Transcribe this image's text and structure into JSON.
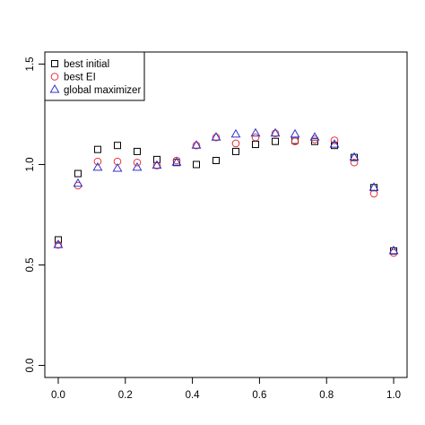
{
  "chart_data": {
    "type": "scatter",
    "title": "",
    "xlabel": "",
    "ylabel": "",
    "xlim": [
      -0.04,
      1.04
    ],
    "ylim": [
      -0.06,
      1.56
    ],
    "x_ticks": [
      0.0,
      0.2,
      0.4,
      0.6,
      0.8,
      1.0
    ],
    "x_tick_labels": [
      "0.0",
      "0.2",
      "0.4",
      "0.6",
      "0.8",
      "1.0"
    ],
    "y_ticks": [
      0.0,
      0.5,
      1.0,
      1.5
    ],
    "y_tick_labels": [
      "0.0",
      "0.5",
      "1.0",
      "1.5"
    ],
    "grid": false,
    "legend": {
      "position": "top-left",
      "entries": [
        {
          "label": "best initial",
          "marker": "square",
          "color": "#000000"
        },
        {
          "label": "best EI",
          "marker": "circle",
          "color": "#e8333a"
        },
        {
          "label": "global maximizer",
          "marker": "triangle",
          "color": "#3333cc"
        }
      ]
    },
    "x": [
      0.0,
      0.0588,
      0.1176,
      0.1765,
      0.2353,
      0.2941,
      0.3529,
      0.4118,
      0.4706,
      0.5294,
      0.5882,
      0.6471,
      0.7059,
      0.7647,
      0.8235,
      0.8824,
      0.9412,
      1.0
    ],
    "series": [
      {
        "name": "best initial",
        "marker": "square",
        "color": "#000000",
        "values": [
          0.625,
          0.955,
          1.075,
          1.095,
          1.065,
          1.025,
          1.01,
          1.0,
          1.02,
          1.065,
          1.1,
          1.115,
          1.12,
          1.115,
          1.095,
          1.035,
          0.885,
          0.57
        ]
      },
      {
        "name": "best EI",
        "marker": "circle",
        "color": "#e8333a",
        "values": [
          0.6,
          0.895,
          1.015,
          1.015,
          1.01,
          0.995,
          1.02,
          1.095,
          1.135,
          1.105,
          1.135,
          1.155,
          1.115,
          1.125,
          1.12,
          1.01,
          0.855,
          0.56
        ]
      },
      {
        "name": "global maximizer",
        "marker": "triangle",
        "color": "#3333cc",
        "values": [
          0.6,
          0.905,
          0.985,
          0.98,
          0.985,
          0.995,
          1.01,
          1.095,
          1.135,
          1.15,
          1.155,
          1.155,
          1.15,
          1.135,
          1.1,
          1.035,
          0.885,
          0.57
        ]
      }
    ]
  }
}
